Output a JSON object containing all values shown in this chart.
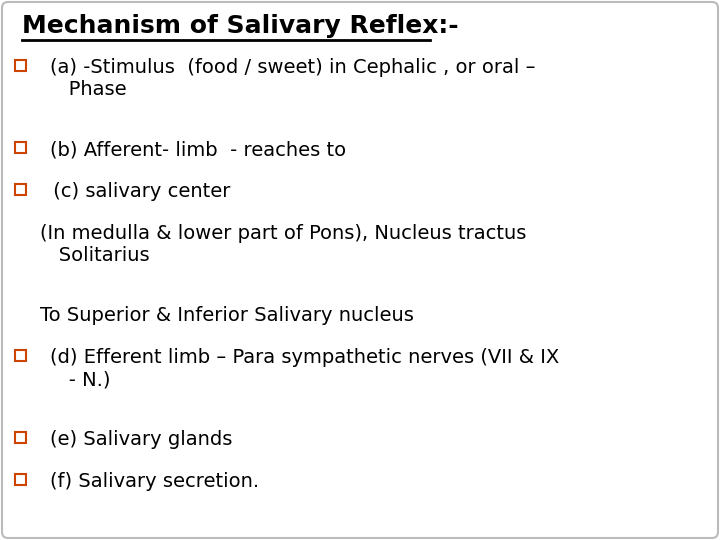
{
  "title": "Mechanism of Salivary Reflex:-",
  "background_color": "#ffffff",
  "box_edge_color": "#bbbbbb",
  "title_color": "#000000",
  "title_fontsize": 18,
  "body_fontsize": 14,
  "body_color": "#000000",
  "bullet_color": "#cc4400",
  "lines": [
    {
      "type": "bullet",
      "indent": 0.07,
      "text": "(a) -Stimulus  (food / sweet) in Cephalic , or oral –\n   Phase"
    },
    {
      "type": "bullet",
      "indent": 0.07,
      "text": "(b) Afferent- limb  - reaches to"
    },
    {
      "type": "bullet",
      "indent": 0.065,
      "text": " (c) salivary center"
    },
    {
      "type": "plain",
      "indent": 0.055,
      "text": "(In medulla & lower part of Pons), Nucleus tractus\n   Solitarius"
    },
    {
      "type": "plain",
      "indent": 0.055,
      "text": "To Superior & Inferior Salivary nucleus"
    },
    {
      "type": "bullet",
      "indent": 0.07,
      "text": "(d) Efferent limb – Para sympathetic nerves (VII & IX\n   - N.)"
    },
    {
      "type": "bullet",
      "indent": 0.07,
      "text": "(e) Salivary glands"
    },
    {
      "type": "bullet",
      "indent": 0.07,
      "text": "(f) Salivary secretion."
    }
  ]
}
